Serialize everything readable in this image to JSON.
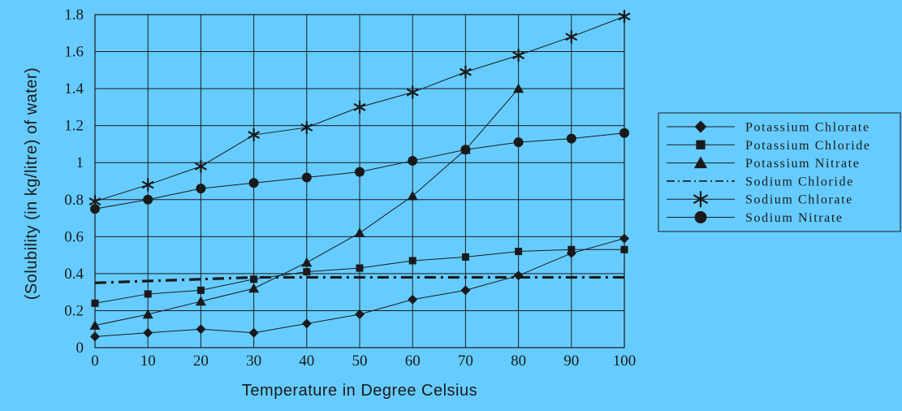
{
  "chart_data": {
    "type": "line",
    "title": "",
    "xlabel": "Temperature in Degree Celsius",
    "ylabel": "(Solubility (in kg/litre) of water)",
    "x": [
      0,
      10,
      20,
      30,
      40,
      50,
      60,
      70,
      80,
      90,
      100
    ],
    "xlim": [
      0,
      100
    ],
    "ylim": [
      0,
      1.8
    ],
    "x_ticks": [
      "0",
      "10",
      "20",
      "30",
      "40",
      "50",
      "60",
      "70",
      "80",
      "90",
      "100"
    ],
    "y_ticks": [
      "0",
      "0.2",
      "0.4",
      "0.6",
      "0.8",
      "1",
      "1.2",
      "1.4",
      "1.6",
      "1.8"
    ],
    "grid": true,
    "legend_position": "right",
    "colors": {
      "background": "#66ccff",
      "plot_area": "#66ccff",
      "ink": "#1a1a1a"
    },
    "series": [
      {
        "name": "Potassium Chlorate",
        "marker": "diamond",
        "x": [
          0,
          10,
          20,
          30,
          40,
          50,
          60,
          70,
          80,
          90,
          100
        ],
        "values": [
          0.06,
          0.08,
          0.1,
          0.08,
          0.13,
          0.18,
          0.26,
          0.31,
          0.39,
          0.51,
          0.59
        ]
      },
      {
        "name": "Potassium Chloride",
        "marker": "square",
        "x": [
          0,
          10,
          20,
          30,
          40,
          50,
          60,
          70,
          80,
          90,
          100
        ],
        "values": [
          0.24,
          0.29,
          0.31,
          0.37,
          0.41,
          0.43,
          0.47,
          0.49,
          0.52,
          0.53,
          0.53
        ]
      },
      {
        "name": "Potassium Nitrate",
        "marker": "triangle",
        "x": [
          0,
          10,
          20,
          30,
          40,
          50,
          60,
          70,
          80
        ],
        "values": [
          0.12,
          0.18,
          0.25,
          0.32,
          0.46,
          0.62,
          0.82,
          1.07,
          1.4
        ]
      },
      {
        "name": "Sodium Chloride",
        "marker": "none",
        "dash": "dash-dot",
        "x": [
          0,
          10,
          20,
          30,
          40,
          50,
          60,
          70,
          80,
          90,
          100
        ],
        "values": [
          0.35,
          0.36,
          0.37,
          0.38,
          0.38,
          0.38,
          0.38,
          0.38,
          0.38,
          0.38,
          0.38
        ]
      },
      {
        "name": "Sodium Chlorate",
        "marker": "star",
        "x": [
          0,
          10,
          20,
          30,
          40,
          50,
          60,
          70,
          80,
          90,
          100
        ],
        "values": [
          0.79,
          0.88,
          0.98,
          1.15,
          1.19,
          1.3,
          1.38,
          1.49,
          1.58,
          1.68,
          1.79
        ]
      },
      {
        "name": "Sodium Nitrate",
        "marker": "circle",
        "x": [
          0,
          10,
          20,
          30,
          40,
          50,
          60,
          70,
          80,
          90,
          100
        ],
        "values": [
          0.75,
          0.8,
          0.86,
          0.89,
          0.92,
          0.95,
          1.01,
          1.07,
          1.11,
          1.13,
          1.16
        ]
      }
    ]
  }
}
